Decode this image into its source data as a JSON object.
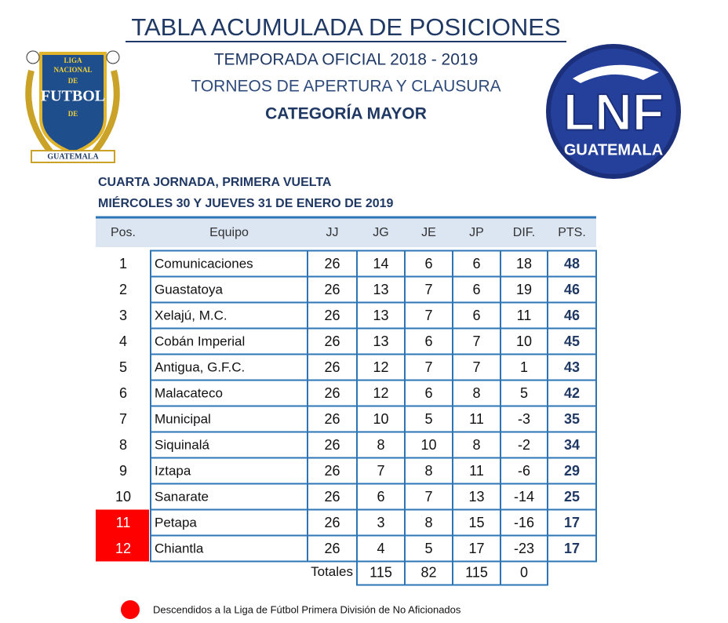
{
  "header": {
    "title": "TABLA ACUMULADA DE POSICIONES",
    "season": "TEMPORADA OFICIAL 2018 - 2019",
    "tournaments": "TORNEOS DE APERTURA Y CLAUSURA",
    "category": "CATEGORÍA MAYOR",
    "round": "CUARTA JORNADA, PRIMERA VUELTA",
    "date": "MIÉRCOLES 30 Y JUEVES 31 DE ENERO DE 2019"
  },
  "logo_left": [
    "LIGA",
    "NACIONAL",
    "DE",
    "FUTBOL",
    "DE",
    "GUATEMALA"
  ],
  "logo_right": [
    "LNF",
    "GUATEMALA"
  ],
  "table": {
    "columns": [
      "Pos.",
      "Equipo",
      "JJ",
      "JG",
      "JE",
      "JP",
      "DIF.",
      "PTS."
    ],
    "rows": [
      {
        "cells": [
          1,
          "Comunicaciones",
          26,
          14,
          6,
          6,
          18,
          48
        ],
        "relegated": false
      },
      {
        "cells": [
          2,
          "Guastatoya",
          26,
          13,
          7,
          6,
          19,
          46
        ],
        "relegated": false
      },
      {
        "cells": [
          3,
          "Xelajú, M.C.",
          26,
          13,
          7,
          6,
          11,
          46
        ],
        "relegated": false
      },
      {
        "cells": [
          4,
          "Cobán Imperial",
          26,
          13,
          6,
          7,
          10,
          45
        ],
        "relegated": false
      },
      {
        "cells": [
          5,
          "Antigua, G.F.C.",
          26,
          12,
          7,
          7,
          1,
          43
        ],
        "relegated": false
      },
      {
        "cells": [
          6,
          "Malacateco",
          26,
          12,
          6,
          8,
          5,
          42
        ],
        "relegated": false
      },
      {
        "cells": [
          7,
          "Municipal",
          26,
          10,
          5,
          11,
          -3,
          35
        ],
        "relegated": false
      },
      {
        "cells": [
          8,
          "Siquinalá",
          26,
          8,
          10,
          8,
          -2,
          34
        ],
        "relegated": false
      },
      {
        "cells": [
          9,
          "Iztapa",
          26,
          7,
          8,
          11,
          -6,
          29
        ],
        "relegated": false
      },
      {
        "cells": [
          10,
          "Sanarate",
          26,
          6,
          7,
          13,
          -14,
          25
        ],
        "relegated": false
      },
      {
        "cells": [
          11,
          "Petapa",
          26,
          3,
          8,
          15,
          -16,
          17
        ],
        "relegated": true
      },
      {
        "cells": [
          12,
          "Chiantla",
          26,
          4,
          5,
          17,
          -23,
          17
        ],
        "relegated": true
      }
    ],
    "totals_label": "Totales",
    "totals": [
      115,
      82,
      115,
      0
    ]
  },
  "legend": "Descendidos a la Liga de Fútbol Primera División de No Aficionados"
}
